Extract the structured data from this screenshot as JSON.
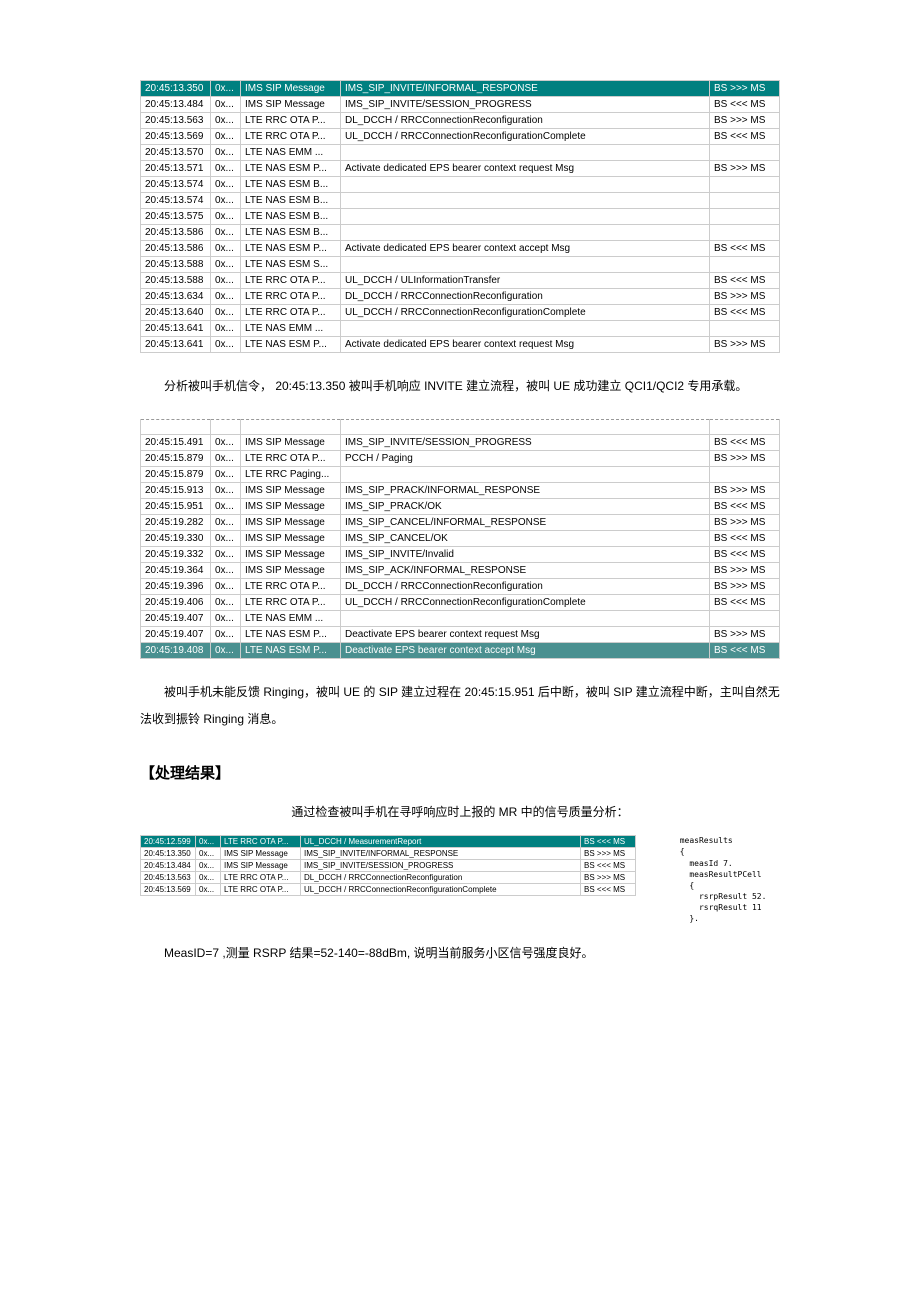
{
  "table1": {
    "rows": [
      {
        "time": "20:45:13.350",
        "hex": "0x...",
        "proto": "IMS SIP Message",
        "msg": "IMS_SIP_INVITE/INFORMAL_RESPONSE",
        "dir": "BS >>> MS",
        "hl": "teal"
      },
      {
        "time": "20:45:13.484",
        "hex": "0x...",
        "proto": "IMS SIP Message",
        "msg": "IMS_SIP_INVITE/SESSION_PROGRESS",
        "dir": "BS <<< MS"
      },
      {
        "time": "20:45:13.563",
        "hex": "0x...",
        "proto": "LTE RRC OTA P...",
        "msg": "DL_DCCH / RRCConnectionReconfiguration",
        "dir": "BS >>> MS"
      },
      {
        "time": "20:45:13.569",
        "hex": "0x...",
        "proto": "LTE RRC OTA P...",
        "msg": "UL_DCCH / RRCConnectionReconfigurationComplete",
        "dir": "BS <<< MS"
      },
      {
        "time": "20:45:13.570",
        "hex": "0x...",
        "proto": "LTE NAS EMM ...",
        "msg": "",
        "dir": ""
      },
      {
        "time": "20:45:13.571",
        "hex": "0x...",
        "proto": "LTE NAS ESM P...",
        "msg": "Activate dedicated EPS bearer context request Msg",
        "dir": "BS >>> MS"
      },
      {
        "time": "20:45:13.574",
        "hex": "0x...",
        "proto": "LTE NAS ESM B...",
        "msg": "",
        "dir": ""
      },
      {
        "time": "20:45:13.574",
        "hex": "0x...",
        "proto": "LTE NAS ESM B...",
        "msg": "",
        "dir": ""
      },
      {
        "time": "20:45:13.575",
        "hex": "0x...",
        "proto": "LTE NAS ESM B...",
        "msg": "",
        "dir": ""
      },
      {
        "time": "20:45:13.586",
        "hex": "0x...",
        "proto": "LTE NAS ESM B...",
        "msg": "",
        "dir": ""
      },
      {
        "time": "20:45:13.586",
        "hex": "0x...",
        "proto": "LTE NAS ESM P...",
        "msg": "Activate dedicated EPS bearer context accept Msg",
        "dir": "BS <<< MS"
      },
      {
        "time": "20:45:13.588",
        "hex": "0x...",
        "proto": "LTE NAS ESM S...",
        "msg": "",
        "dir": ""
      },
      {
        "time": "20:45:13.588",
        "hex": "0x...",
        "proto": "LTE RRC OTA P...",
        "msg": "UL_DCCH / ULInformationTransfer",
        "dir": "BS <<< MS"
      },
      {
        "time": "20:45:13.634",
        "hex": "0x...",
        "proto": "LTE RRC OTA P...",
        "msg": "DL_DCCH / RRCConnectionReconfiguration",
        "dir": "BS >>> MS"
      },
      {
        "time": "20:45:13.640",
        "hex": "0x...",
        "proto": "LTE RRC OTA P...",
        "msg": "UL_DCCH / RRCConnectionReconfigurationComplete",
        "dir": "BS <<< MS"
      },
      {
        "time": "20:45:13.641",
        "hex": "0x...",
        "proto": "LTE NAS EMM ...",
        "msg": "",
        "dir": ""
      },
      {
        "time": "20:45:13.641",
        "hex": "0x...",
        "proto": "LTE NAS ESM P...",
        "msg": "Activate dedicated EPS bearer context request Msg",
        "dir": "BS >>> MS"
      }
    ]
  },
  "para1": "分析被叫手机信令， 20:45:13.350 被叫手机响应 INVITE  建立流程，被叫 UE 成功建立 QCI1/QCI2 专用承载。",
  "table2": {
    "truncated": {
      "time": "",
      "hex": "",
      "proto": "",
      "msg": "",
      "dir": ""
    },
    "rows": [
      {
        "time": "20:45:15.491",
        "hex": "0x...",
        "proto": "IMS SIP Message",
        "msg": "IMS_SIP_INVITE/SESSION_PROGRESS",
        "dir": "BS <<< MS"
      },
      {
        "time": "20:45:15.879",
        "hex": "0x...",
        "proto": "LTE RRC OTA P...",
        "msg": "PCCH / Paging",
        "dir": "BS >>> MS"
      },
      {
        "time": "20:45:15.879",
        "hex": "0x...",
        "proto": "LTE RRC Paging...",
        "msg": "",
        "dir": ""
      },
      {
        "time": "20:45:15.913",
        "hex": "0x...",
        "proto": "IMS SIP Message",
        "msg": "IMS_SIP_PRACK/INFORMAL_RESPONSE",
        "dir": "BS >>> MS"
      },
      {
        "time": "20:45:15.951",
        "hex": "0x...",
        "proto": "IMS SIP Message",
        "msg": "IMS_SIP_PRACK/OK",
        "dir": "BS <<< MS"
      },
      {
        "time": "20:45:19.282",
        "hex": "0x...",
        "proto": "IMS SIP Message",
        "msg": "IMS_SIP_CANCEL/INFORMAL_RESPONSE",
        "dir": "BS >>> MS"
      },
      {
        "time": "20:45:19.330",
        "hex": "0x...",
        "proto": "IMS SIP Message",
        "msg": "IMS_SIP_CANCEL/OK",
        "dir": "BS <<< MS"
      },
      {
        "time": "20:45:19.332",
        "hex": "0x...",
        "proto": "IMS SIP Message",
        "msg": "IMS_SIP_INVITE/Invalid",
        "dir": "BS <<< MS"
      },
      {
        "time": "20:45:19.364",
        "hex": "0x...",
        "proto": "IMS SIP Message",
        "msg": "IMS_SIP_ACK/INFORMAL_RESPONSE",
        "dir": "BS >>> MS"
      },
      {
        "time": "20:45:19.396",
        "hex": "0x...",
        "proto": "LTE RRC OTA P...",
        "msg": "DL_DCCH / RRCConnectionReconfiguration",
        "dir": "BS >>> MS"
      },
      {
        "time": "20:45:19.406",
        "hex": "0x...",
        "proto": "LTE RRC OTA P...",
        "msg": "UL_DCCH / RRCConnectionReconfigurationComplete",
        "dir": "BS <<< MS"
      },
      {
        "time": "20:45:19.407",
        "hex": "0x...",
        "proto": "LTE NAS EMM ...",
        "msg": "",
        "dir": ""
      },
      {
        "time": "20:45:19.407",
        "hex": "0x...",
        "proto": "LTE NAS ESM P...",
        "msg": "Deactivate EPS bearer context request Msg",
        "dir": "BS >>> MS"
      },
      {
        "time": "20:45:19.408",
        "hex": "0x...",
        "proto": "LTE NAS ESM P...",
        "msg": "Deactivate EPS bearer context accept Msg",
        "dir": "BS <<< MS",
        "hl": "teal2"
      }
    ]
  },
  "para2": "被叫手机未能反馈 Ringing，被叫 UE 的 SIP 建立过程在 20:45:15.951 后中断，被叫 SIP 建立流程中断，主叫自然无法收到振铃 Ringing 消息。",
  "heading": "【处理结果】",
  "centered": "通过检查被叫手机在寻呼响应时上报的 MR 中的信号质量分析：",
  "table3": {
    "rows": [
      {
        "time": "20:45:12.599",
        "hex": "0x...",
        "proto": "LTE RRC OTA P...",
        "msg": "UL_DCCH / MeasurementReport",
        "dir": "BS <<< MS",
        "hl": "teal"
      },
      {
        "time": "20:45:13.350",
        "hex": "0x...",
        "proto": "IMS SIP Message",
        "msg": "IMS_SIP_INVITE/INFORMAL_RESPONSE",
        "dir": "BS >>> MS"
      },
      {
        "time": "20:45:13.484",
        "hex": "0x...",
        "proto": "IMS SIP Message",
        "msg": "IMS_SIP_INVITE/SESSION_PROGRESS",
        "dir": "BS <<< MS"
      },
      {
        "time": "20:45:13.563",
        "hex": "0x...",
        "proto": "LTE RRC OTA P...",
        "msg": "DL_DCCH / RRCConnectionReconfiguration",
        "dir": "BS >>> MS"
      },
      {
        "time": "20:45:13.569",
        "hex": "0x...",
        "proto": "LTE RRC OTA P...",
        "msg": "UL_DCCH / RRCConnectionReconfigurationComplete",
        "dir": "BS <<< MS"
      }
    ]
  },
  "detail": "       measResults\n       {\n         measId 7.\n         measResultPCell\n         {\n           rsrpResult 52.\n           rsrqResult 11\n         }.",
  "para3": "MeasID=7 ,测量 RSRP 结果=52-140=-88dBm,  说明当前服务小区信号强度良好。"
}
